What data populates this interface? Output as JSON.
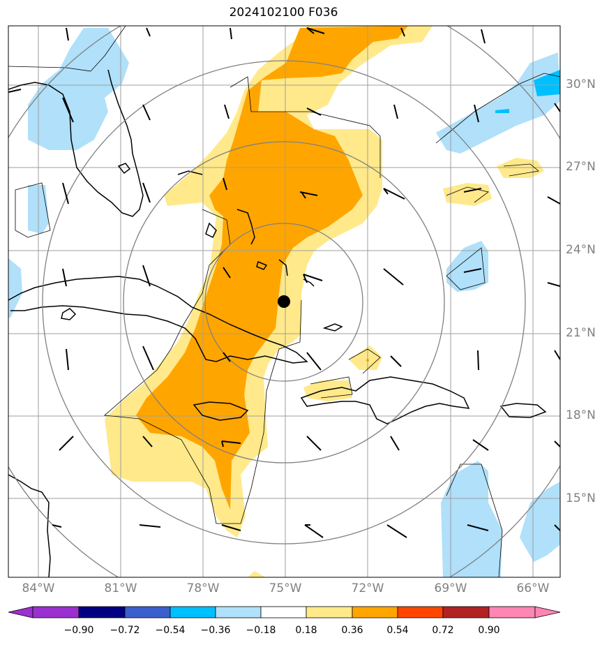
{
  "title": "2024102100 F036",
  "map": {
    "lon_range": [
      -85.0,
      -65.0
    ],
    "lat_range": [
      12.5,
      32.5
    ],
    "lon_ticks": [
      {
        "value": -84,
        "label": "84°W"
      },
      {
        "value": -81,
        "label": "81°W"
      },
      {
        "value": -78,
        "label": "78°W"
      },
      {
        "value": -75,
        "label": "75°W"
      },
      {
        "value": -72,
        "label": "72°W"
      },
      {
        "value": -69,
        "label": "69°W"
      },
      {
        "value": -66,
        "label": "66°W"
      }
    ],
    "lat_ticks": [
      {
        "value": 30,
        "label": "30°N"
      },
      {
        "value": 27,
        "label": "27°N"
      },
      {
        "value": 24,
        "label": "24°N"
      },
      {
        "value": 21,
        "label": "21°N"
      },
      {
        "value": 18,
        "label": "18°N"
      },
      {
        "value": 15,
        "label": "15°N"
      }
    ],
    "storm_center": {
      "lon": -75.0,
      "lat": 22.1
    },
    "range_rings": "concentric circles around storm center",
    "colors": {
      "gridline": "#9e9e9e",
      "ring": "#808080",
      "land_outline": "#000000",
      "storm_marker": "#000000"
    }
  },
  "colorbar": {
    "levels": [
      "−0.90",
      "−0.72",
      "−0.54",
      "−0.36",
      "−0.18",
      "0.18",
      "0.36",
      "0.54",
      "0.72",
      "0.90"
    ],
    "colors": [
      "#9b30d0",
      "#000080",
      "#3a5fcd",
      "#00bfff",
      "#b0e0fa",
      "#ffffff",
      "#ffe98a",
      "#ffa500",
      "#ff4500",
      "#b22222",
      "#ff85b5"
    ],
    "extend": "both"
  }
}
